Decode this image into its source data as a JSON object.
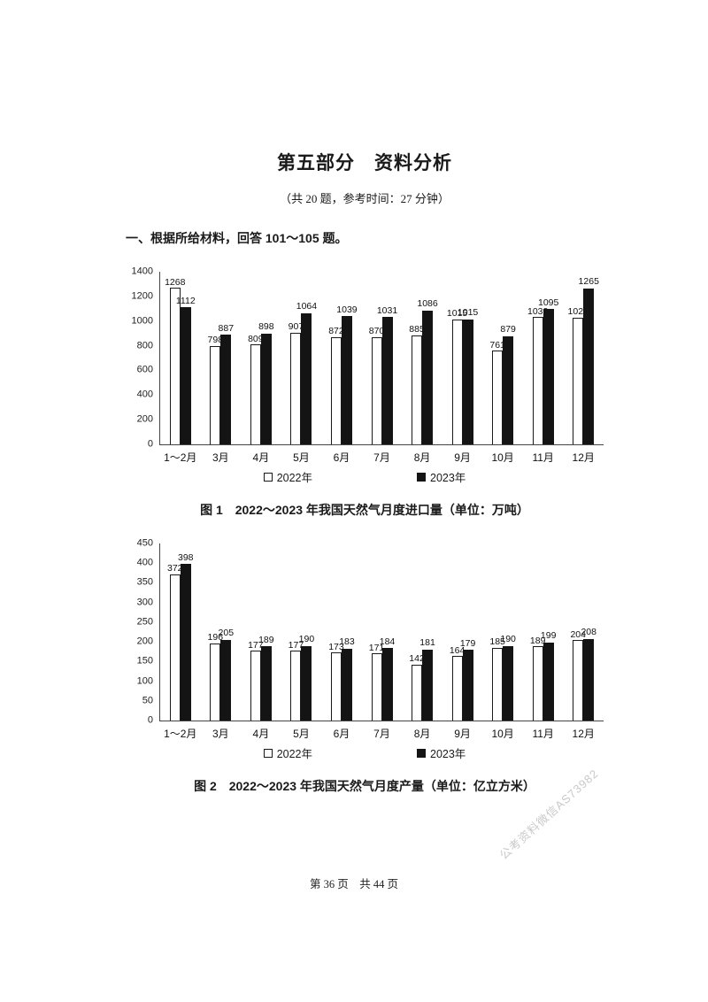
{
  "page": {
    "title": "第五部分　资料分析",
    "subtitle": "（共 20 题，参考时间：27 分钟）",
    "section_heading": "一、根据所给材料，回答 101～105 题。",
    "footer": "第 36 页　共 44 页",
    "watermark": "公考资料微信AS73982"
  },
  "legend": {
    "label_2022": "2022年",
    "label_2023": "2023年"
  },
  "chart_data": [
    {
      "type": "bar",
      "title": "图 1　2022～2023 年我国天然气月度进口量（单位：万吨）",
      "categories": [
        "1～2月",
        "3月",
        "4月",
        "5月",
        "6月",
        "7月",
        "8月",
        "9月",
        "10月",
        "11月",
        "12月"
      ],
      "series": [
        {
          "name": "2022年",
          "values": [
            1268,
            798,
            809,
            907,
            872,
            870,
            885,
            1015,
            761,
            1032,
            1028
          ]
        },
        {
          "name": "2023年",
          "values": [
            1112,
            887,
            898,
            1064,
            1039,
            1031,
            1086,
            1015,
            879,
            1095,
            1265
          ]
        }
      ],
      "xlabel": "",
      "ylabel": "",
      "ylim": [
        0,
        1400
      ],
      "ytick_step": 200,
      "grid": false,
      "legend_position": "bottom"
    },
    {
      "type": "bar",
      "title": "图 2　2022～2023 年我国天然气月度产量（单位：亿立方米）",
      "categories": [
        "1～2月",
        "3月",
        "4月",
        "5月",
        "6月",
        "7月",
        "8月",
        "9月",
        "10月",
        "11月",
        "12月"
      ],
      "series": [
        {
          "name": "2022年",
          "values": [
            372,
            196,
            177,
            177,
            173,
            171,
            142,
            164,
            185,
            189,
            204
          ]
        },
        {
          "name": "2023年",
          "values": [
            398,
            205,
            189,
            190,
            183,
            184,
            181,
            179,
            190,
            199,
            208
          ]
        }
      ],
      "xlabel": "",
      "ylabel": "",
      "ylim": [
        0,
        450
      ],
      "ytick_step": 50,
      "grid": false,
      "legend_position": "bottom"
    }
  ]
}
